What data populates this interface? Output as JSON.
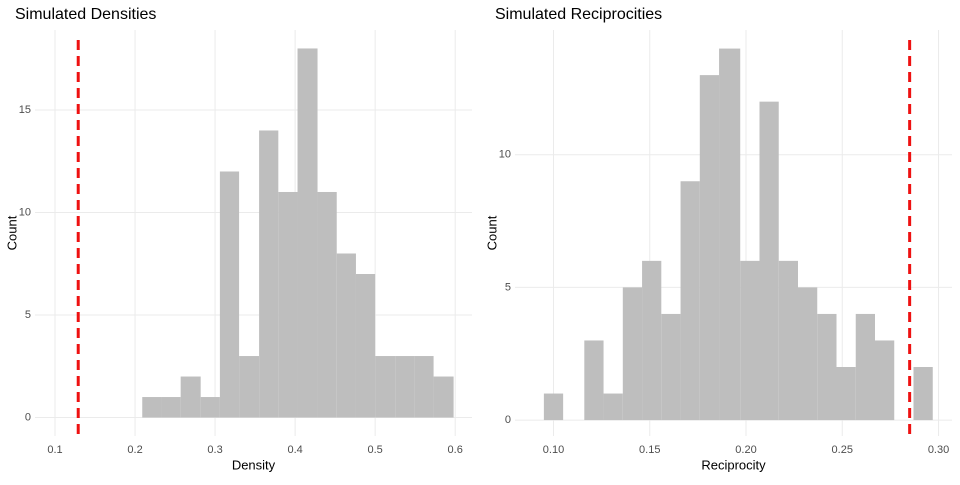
{
  "chart_data": [
    {
      "type": "histogram",
      "title": "Simulated Densities",
      "x_label": "Density",
      "y_label": "Count",
      "bins": [
        0.209,
        0.233,
        0.257,
        0.282,
        0.306,
        0.33,
        0.355,
        0.379,
        0.403,
        0.428,
        0.452,
        0.476,
        0.5,
        0.525,
        0.549,
        0.573,
        0.598
      ],
      "values": [
        1,
        1,
        2,
        1,
        12,
        3,
        14,
        11,
        18,
        11,
        8,
        7,
        3,
        3,
        3,
        2
      ],
      "color": "#bebebe",
      "xlim": [
        0.075,
        0.621
      ],
      "ylim": [
        -0.9,
        18.9
      ],
      "xticks": [
        0.1,
        0.2,
        0.3,
        0.4,
        0.5,
        0.6
      ],
      "yticks": [
        0,
        5,
        10,
        15
      ],
      "grid": true,
      "reference_line": {
        "value": 0.129,
        "color": "#ee1111"
      }
    },
    {
      "type": "histogram",
      "title": "Simulated Reciprocities",
      "x_label": "Reciprocity",
      "y_label": "Count",
      "bins": [
        0.095,
        0.105,
        0.116,
        0.126,
        0.136,
        0.146,
        0.156,
        0.166,
        0.176,
        0.186,
        0.197,
        0.207,
        0.217,
        0.227,
        0.237,
        0.247,
        0.257,
        0.267,
        0.277,
        0.287,
        0.297
      ],
      "values": [
        1,
        0,
        3,
        1,
        5,
        6,
        4,
        9,
        13,
        14,
        6,
        12,
        6,
        5,
        4,
        2,
        4,
        3,
        0,
        2
      ],
      "color": "#bebebe",
      "xlim": [
        0.08,
        0.307
      ],
      "ylim": [
        -0.6,
        14.7
      ],
      "xticks": [
        {
          "value": 0.1,
          "label": "0.10"
        },
        {
          "value": 0.15,
          "label": "0.15"
        },
        {
          "value": 0.2,
          "label": "0.20"
        },
        {
          "value": 0.25,
          "label": "0.25"
        },
        {
          "value": 0.3,
          "label": "0.30"
        }
      ],
      "yticks": [
        0,
        5,
        10
      ],
      "grid": true,
      "reference_line": {
        "value": 0.285,
        "color": "#ee1111"
      }
    }
  ]
}
